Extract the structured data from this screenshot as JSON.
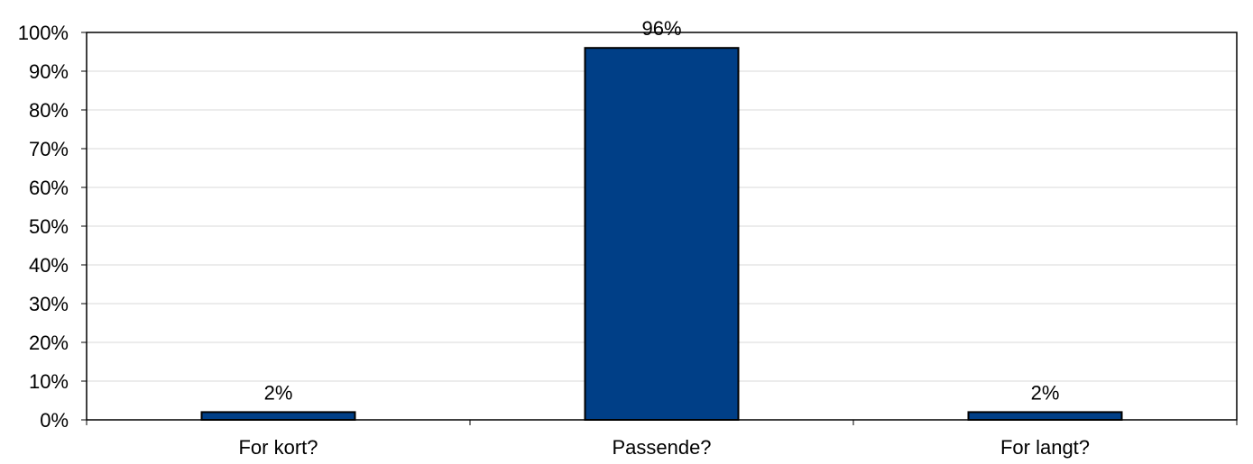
{
  "chart_data": {
    "type": "bar",
    "title": "",
    "xlabel": "",
    "ylabel": "",
    "categories": [
      "For kort?",
      "Passende?",
      "For langt?"
    ],
    "values": [
      2,
      96,
      2
    ],
    "data_labels": [
      "2%",
      "96%",
      "2%"
    ],
    "ylim": [
      0,
      100
    ],
    "yticks": [
      0,
      10,
      20,
      30,
      40,
      50,
      60,
      70,
      80,
      90,
      100
    ],
    "ytick_labels": [
      "0%",
      "10%",
      "20%",
      "30%",
      "40%",
      "50%",
      "60%",
      "70%",
      "80%",
      "90%",
      "100%"
    ],
    "grid": true,
    "legend": "none",
    "colors": {
      "bar_fill": "#003F87",
      "bar_stroke": "#000000",
      "grid": "#D9D9D9",
      "axis": "#000000"
    }
  }
}
